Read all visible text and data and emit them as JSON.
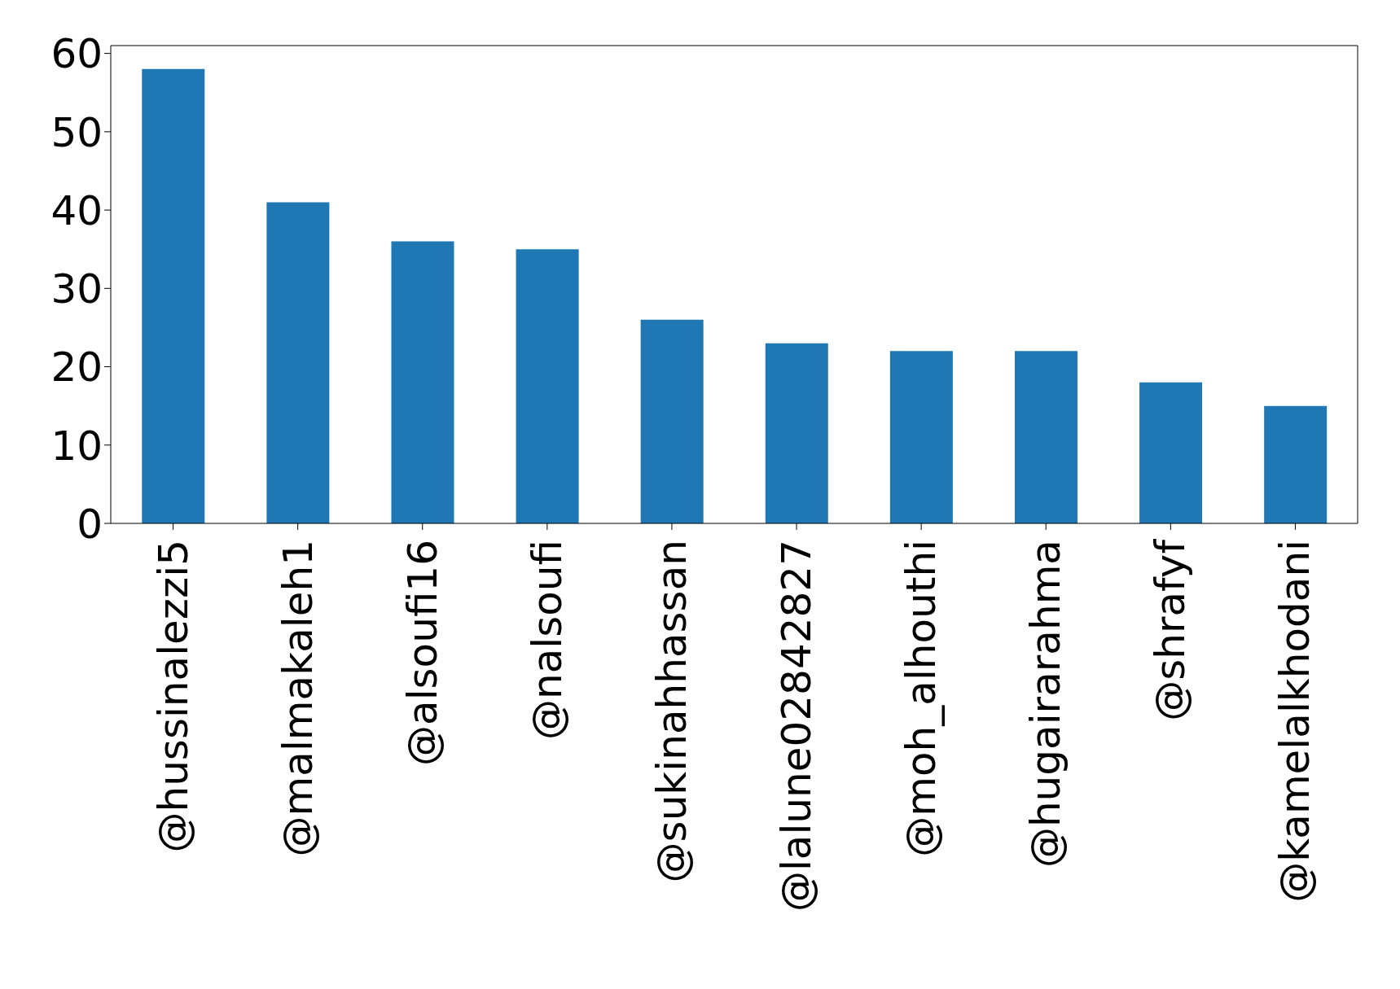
{
  "chart_data": {
    "type": "bar",
    "categories": [
      "@hussinalezzi5",
      "@malmakaleh1",
      "@alsoufi16",
      "@nalsoufi",
      "@sukinahhassan",
      "@lalune02842827",
      "@moh_alhouthi",
      "@hugairarahma",
      "@shrafyf",
      "@kamelalkhodani"
    ],
    "values": [
      58,
      41,
      36,
      35,
      26,
      23,
      22,
      22,
      18,
      15
    ],
    "color": "#1f77b4",
    "ylim": [
      0,
      61
    ],
    "yticks": [
      0,
      10,
      20,
      30,
      40,
      50,
      60
    ]
  }
}
